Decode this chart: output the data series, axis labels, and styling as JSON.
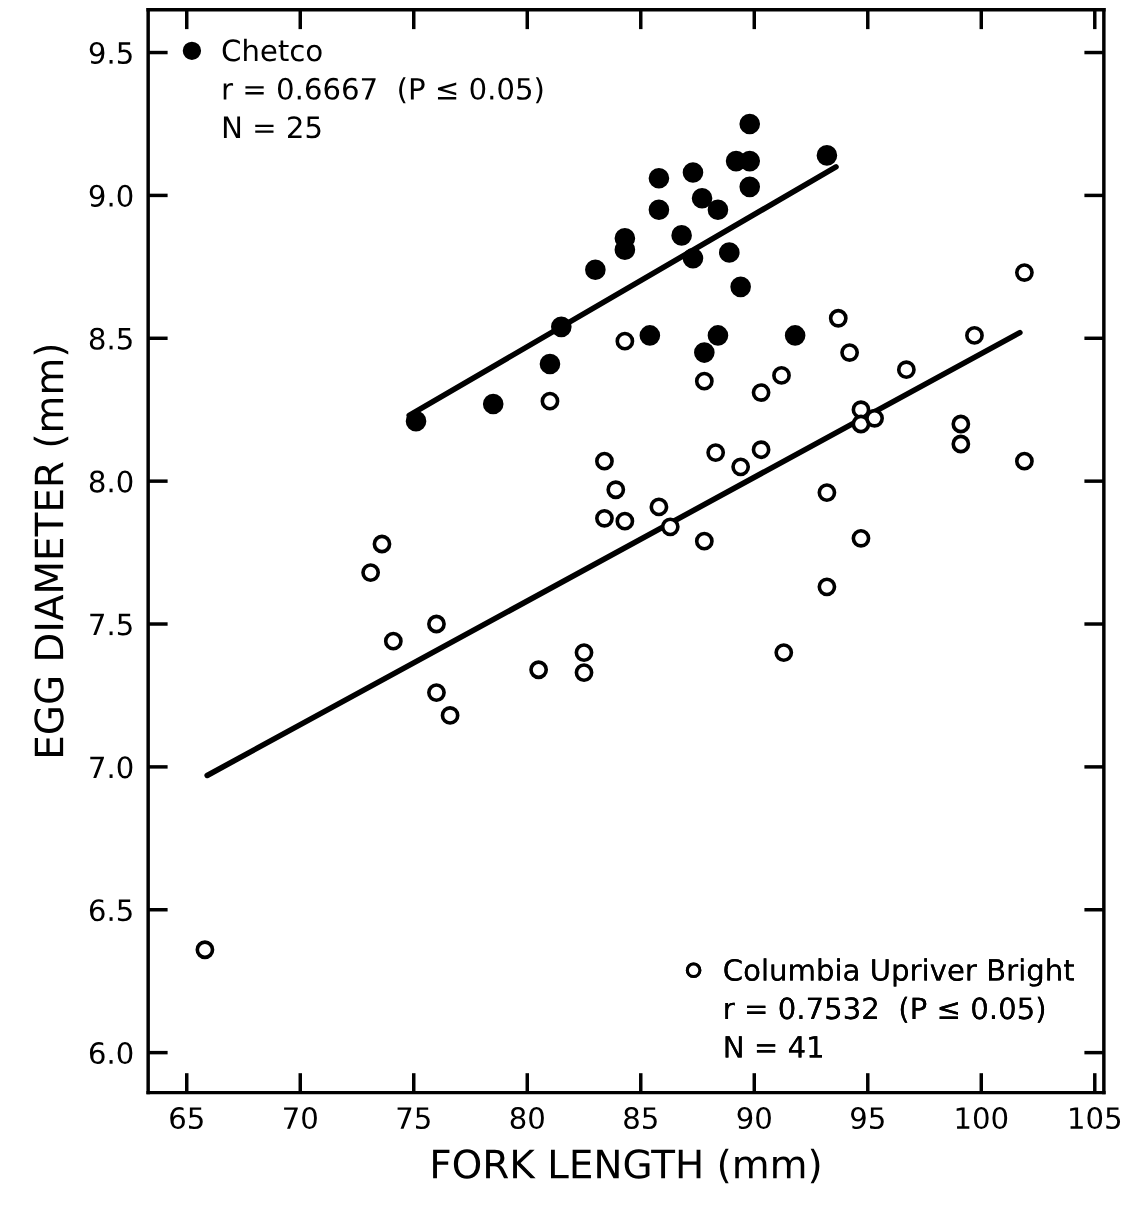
{
  "chart_data": {
    "type": "scatter",
    "xlabel": "FORK LENGTH (mm)",
    "ylabel": "EGG DIAMETER (mm)",
    "xlim": [
      63.3,
      105.4
    ],
    "ylim": [
      5.86,
      9.65
    ],
    "xticks": [
      65,
      70,
      75,
      80,
      85,
      90,
      95,
      100,
      105
    ],
    "yticks": [
      {
        "value": 6.0,
        "label": "6.0"
      },
      {
        "value": 6.5,
        "label": "6.5"
      },
      {
        "value": 7.0,
        "label": "7.0"
      },
      {
        "value": 7.5,
        "label": "7.5"
      },
      {
        "value": 8.0,
        "label": "8.0"
      },
      {
        "value": 8.5,
        "label": "8.5"
      },
      {
        "value": 9.0,
        "label": "9.0"
      },
      {
        "value": 9.5,
        "label": "9.5"
      }
    ],
    "grid": false,
    "legend": "top left",
    "annotations": [
      "r = 0.6667  (P ≤ 0.05)",
      "N = 25",
      "r = 0.7532  (P ≤ 0.05)",
      "N = 41"
    ],
    "series": [
      {
        "name": "Chetco",
        "color": "#000000",
        "marker": "circle",
        "x": [
          75.1,
          78.5,
          81.0,
          81.5,
          83.0,
          84.3,
          84.3,
          85.8,
          85.8,
          85.4,
          86.8,
          87.3,
          87.3,
          87.7,
          88.4,
          87.8,
          88.4,
          88.9,
          89.2,
          89.8,
          89.8,
          89.8,
          89.4,
          91.8,
          93.2
        ],
        "values": [
          8.21,
          8.27,
          8.41,
          8.54,
          8.74,
          8.81,
          8.85,
          9.06,
          8.95,
          8.51,
          8.86,
          9.08,
          8.78,
          8.99,
          8.95,
          8.45,
          8.51,
          8.8,
          9.12,
          9.12,
          9.25,
          9.03,
          8.68,
          8.51,
          9.14
        ]
      },
      {
        "name": "Columbia Upriver Bright",
        "color": "#000000",
        "marker": "circle",
        "x": [
          65.8,
          73.1,
          73.6,
          74.1,
          76.0,
          76.0,
          76.6,
          80.5,
          81.0,
          82.5,
          82.5,
          83.4,
          83.4,
          83.9,
          84.3,
          84.3,
          85.8,
          86.3,
          87.8,
          87.8,
          88.3,
          89.4,
          90.3,
          90.3,
          91.2,
          91.3,
          93.2,
          93.2,
          93.7,
          94.2,
          94.7,
          94.7,
          95.3,
          94.7,
          96.7,
          99.1,
          99.1,
          99.7,
          101.9,
          101.9
        ],
        "values": [
          6.36,
          7.68,
          7.78,
          7.44,
          7.5,
          7.26,
          7.18,
          7.34,
          8.28,
          7.4,
          7.33,
          8.07,
          7.87,
          7.97,
          7.86,
          8.49,
          7.91,
          7.84,
          8.35,
          7.79,
          8.1,
          8.05,
          8.31,
          8.11,
          8.37,
          7.4,
          7.96,
          7.63,
          8.57,
          8.45,
          8.25,
          8.2,
          8.22,
          7.8,
          8.39,
          8.2,
          8.13,
          8.51,
          8.73,
          8.07
        ]
      },
      {
        "type": "line",
        "color": "#000000",
        "x": [
          74.8,
          93.6
        ],
        "values": [
          8.23,
          9.1
        ]
      },
      {
        "type": "line",
        "color": "#000000",
        "x": [
          65.9,
          101.7
        ],
        "values": [
          6.97,
          8.52
        ]
      }
    ]
  }
}
